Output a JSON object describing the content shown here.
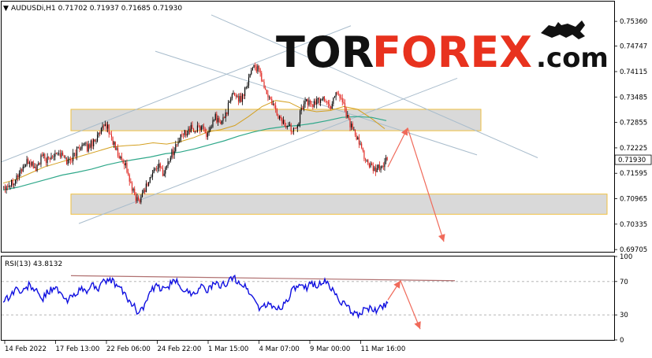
{
  "header": {
    "symbol_line": "AUDUSDi,H1  0.71702 0.71937 0.71685 0.71930",
    "collapse_glyph": "▼"
  },
  "logo": {
    "part1": "TOR",
    "part2": "FOREX",
    "part3": ".com",
    "emblem": "bull-icon"
  },
  "chart_data": [
    {
      "type": "line",
      "symbol": "AUDUSDi",
      "timeframe": "H1",
      "ohlc": {
        "open": 0.71702,
        "high": 0.71937,
        "low": 0.71685,
        "close": 0.7193
      },
      "x_tick_labels": [
        "14 Feb 2022",
        "17 Feb 13:00",
        "22 Feb 06:00",
        "24 Feb 22:00",
        "1 Mar 15:00",
        "4 Mar 07:00",
        "9 Mar 00:00",
        "11 Mar 16:00"
      ],
      "y_tick_labels": [
        "0.75360",
        "0.74747",
        "0.74115",
        "0.73485",
        "0.72855",
        "0.72225",
        "0.71595",
        "0.70965",
        "0.70335",
        "0.69705"
      ],
      "ylim": [
        0.6965,
        0.7585
      ],
      "current_price": "0.71930",
      "price_path": [
        0.7128,
        0.7135,
        0.715,
        0.7175,
        0.719,
        0.717,
        0.72,
        0.719,
        0.7215,
        0.7205,
        0.7188,
        0.7205,
        0.723,
        0.7222,
        0.724,
        0.7255,
        0.7282,
        0.724,
        0.72,
        0.7185,
        0.712,
        0.709,
        0.712,
        0.715,
        0.718,
        0.716,
        0.72,
        0.723,
        0.7255,
        0.727,
        0.7265,
        0.7278,
        0.725,
        0.73,
        0.728,
        0.732,
        0.736,
        0.734,
        0.738,
        0.743,
        0.741,
        0.736,
        0.733,
        0.73,
        0.728,
        0.727,
        0.7285,
        0.734,
        0.733,
        0.7335,
        0.735,
        0.732,
        0.7365,
        0.734,
        0.729,
        0.725,
        0.722,
        0.718,
        0.7165,
        0.7175,
        0.7193
      ],
      "ma_fast": [
        0.7135,
        0.7145,
        0.716,
        0.7175,
        0.7185,
        0.7195,
        0.7205,
        0.7215,
        0.7225,
        0.7228,
        0.723,
        0.7235,
        0.7232,
        0.7238,
        0.7248,
        0.7262,
        0.7268,
        0.7278,
        0.73,
        0.7325,
        0.734,
        0.7335,
        0.7318,
        0.7312,
        0.7315,
        0.7325,
        0.7318,
        0.7296,
        0.727
      ],
      "ma_slow": [
        0.7118,
        0.7125,
        0.7135,
        0.7145,
        0.7155,
        0.7162,
        0.717,
        0.718,
        0.7188,
        0.7194,
        0.72,
        0.7208,
        0.7212,
        0.722,
        0.723,
        0.724,
        0.7252,
        0.7262,
        0.727,
        0.7275,
        0.7278,
        0.7283,
        0.729,
        0.7298,
        0.73,
        0.7298,
        0.729
      ],
      "zones": [
        {
          "from": 0.7265,
          "to": 0.7318
        },
        {
          "from": 0.7058,
          "to": 0.7108
        }
      ],
      "trendlines": [
        {
          "x1": "14 Feb 2022",
          "y1": 0.7188,
          "x2": "8 Mar",
          "y2": 0.7525,
          "color": "#a8bccc"
        },
        {
          "x1": "16 Feb",
          "y1": 0.7035,
          "x2": "16 Mar",
          "y2": 0.7395,
          "color": "#a8bccc"
        },
        {
          "x1": "23 Feb",
          "y1": 0.7462,
          "x2": "17 Mar",
          "y2": 0.7205,
          "color": "#a8bccc"
        },
        {
          "x1": "25 Feb",
          "y1": 0.7552,
          "x2": "17 Mar",
          "y2": 0.7198,
          "color": "#a8bccc"
        }
      ],
      "forecast_arrows": [
        {
          "from": 0.7175,
          "to": 0.7272,
          "color": "#f06a5a"
        },
        {
          "from": 0.7272,
          "to": 0.699,
          "color": "#f06a5a"
        }
      ]
    },
    {
      "type": "line",
      "indicator_label": "RSI(13) 43.8132",
      "y_tick_labels": [
        "100",
        "70",
        "30",
        "0"
      ],
      "ylim": [
        0,
        100
      ],
      "levels": [
        70,
        30
      ],
      "rsi_path": [
        48,
        52,
        62,
        56,
        66,
        60,
        48,
        58,
        64,
        54,
        46,
        55,
        60,
        58,
        66,
        62,
        72,
        70,
        64,
        54,
        44,
        34,
        40,
        58,
        64,
        60,
        66,
        70,
        62,
        56,
        58,
        64,
        60,
        67,
        64,
        70,
        74,
        68,
        62,
        50,
        38,
        42,
        40,
        38,
        44,
        58,
        64,
        61,
        68,
        66,
        70,
        64,
        52,
        44,
        36,
        30,
        34,
        38,
        34,
        40,
        44
      ],
      "resistance_line": {
        "from": 77,
        "to": 71,
        "color": "#b07070"
      },
      "forecast_arrows": [
        {
          "from": 48,
          "to": 71,
          "color": "#f06a5a"
        },
        {
          "from": 71,
          "to": 13,
          "color": "#f06a5a"
        }
      ]
    }
  ]
}
